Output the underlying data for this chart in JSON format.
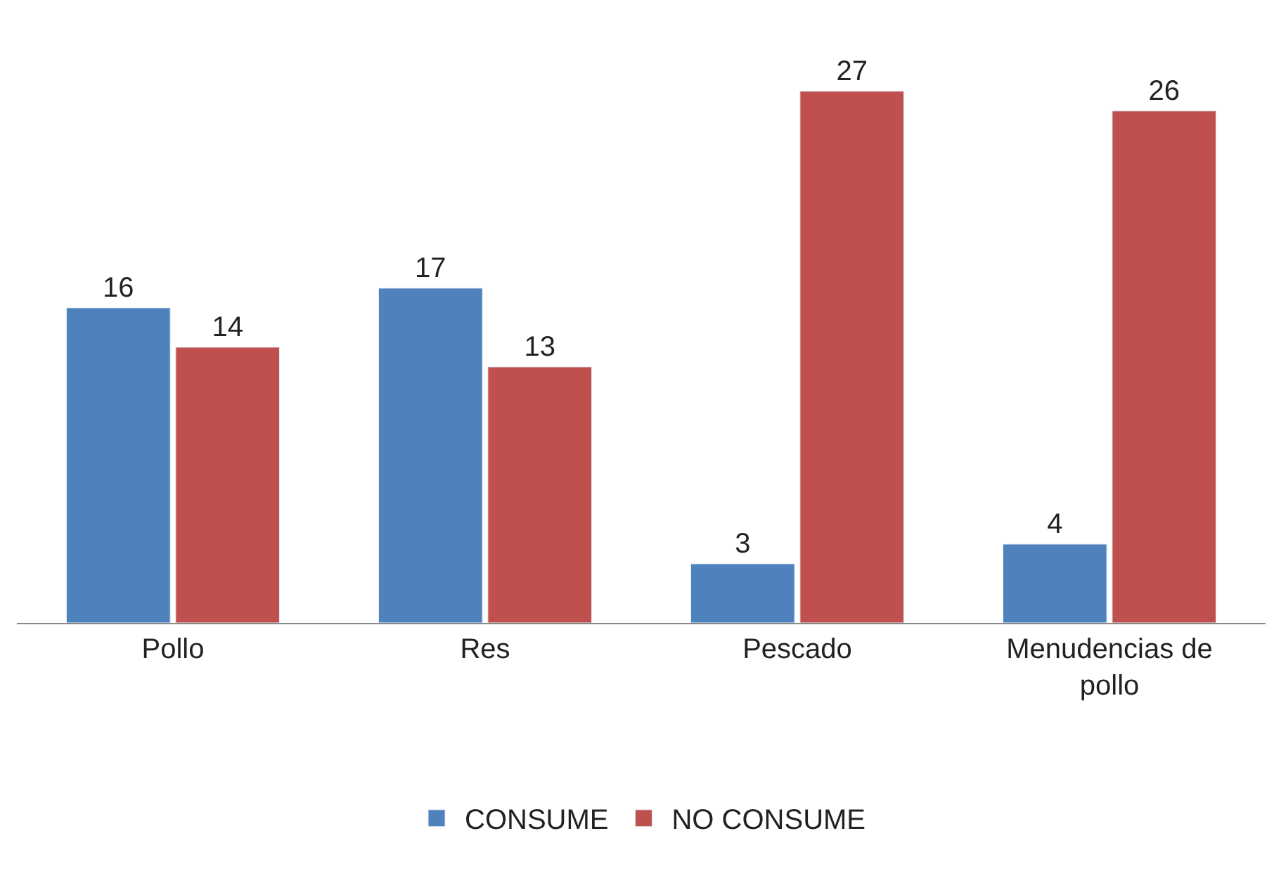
{
  "chart_data": {
    "type": "bar",
    "categories": [
      "Pollo",
      "Res",
      "Pescado",
      "Menudencias de pollo"
    ],
    "series": [
      {
        "name": "CONSUME",
        "color": "#4f81bd",
        "values": [
          16,
          17,
          3,
          4
        ]
      },
      {
        "name": "NO CONSUME",
        "color": "#c0504d",
        "values": [
          14,
          13,
          27,
          26
        ]
      }
    ],
    "data_labels": true,
    "legend": "bottom",
    "tick_labels": "x"
  }
}
